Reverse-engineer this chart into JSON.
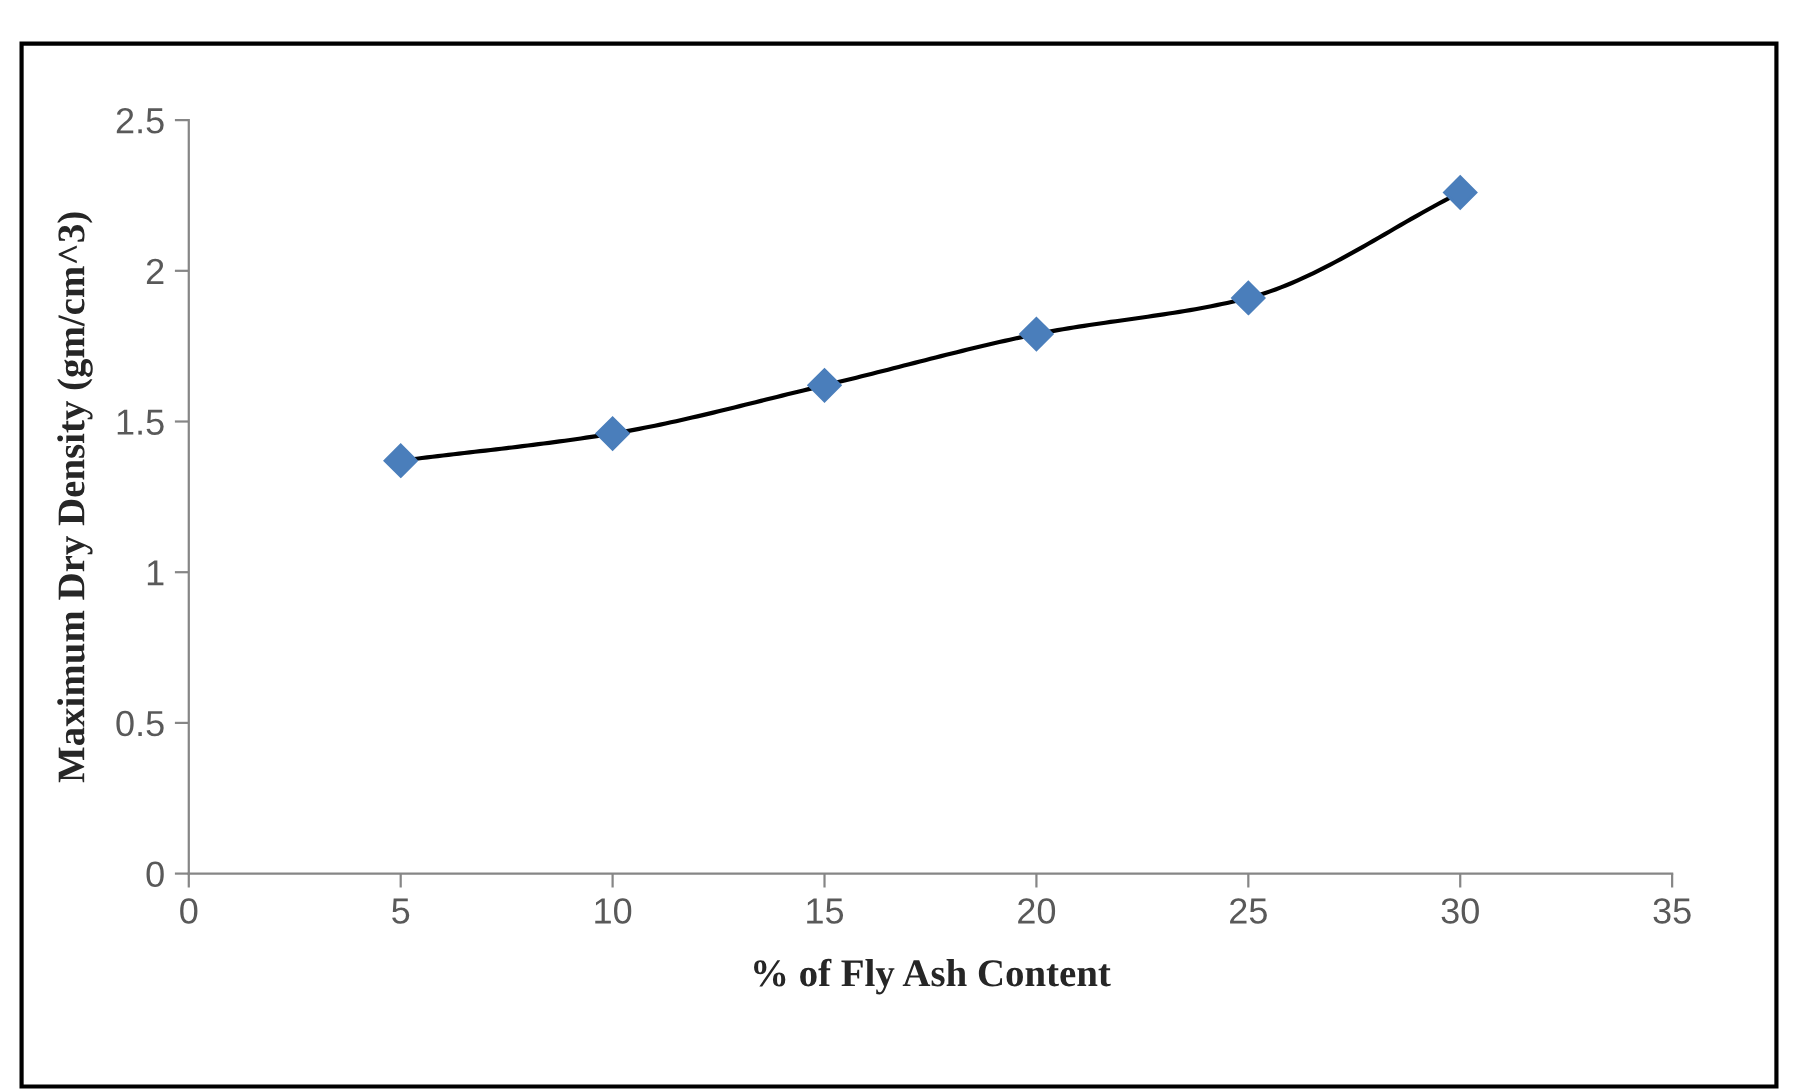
{
  "chart_data": {
    "type": "line",
    "xlabel": "% of Fly Ash Content",
    "ylabel": "Maximum Dry Density (gm/cm^3)",
    "x": [
      5,
      10,
      15,
      20,
      25,
      30
    ],
    "series": [
      {
        "color": "#4a7ebb",
        "values": [
          1.37,
          1.46,
          1.62,
          1.79,
          1.91,
          2.26
        ]
      }
    ],
    "xlim": [
      0,
      35
    ],
    "xticks": [
      0,
      5,
      10,
      15,
      20,
      25,
      30,
      35
    ],
    "ylim": [
      0,
      2.5
    ],
    "yticks": [
      0,
      0.5,
      1,
      1.5,
      2,
      2.5
    ],
    "grid": false,
    "legend": false,
    "marker": "diamond",
    "line_style": "solid"
  }
}
